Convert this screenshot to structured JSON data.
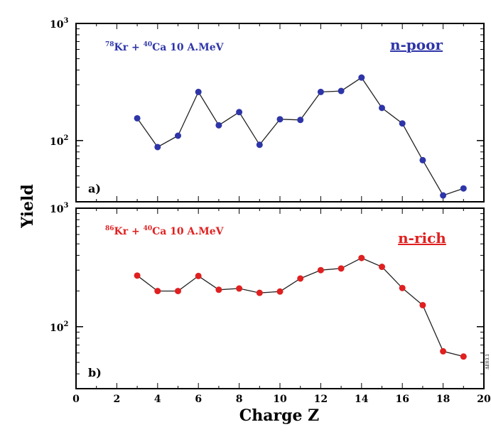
{
  "figure": {
    "ylabel": "Yield",
    "xlabel": "Charge Z",
    "side_mark": "ΔE03.1"
  },
  "chart_data": [
    {
      "type": "line",
      "panel_label": "a)",
      "reaction": {
        "a1": "78",
        "s1": "Kr + ",
        "a2": "40",
        "s2": "Ca  10 A.MeV"
      },
      "tag": "n-poor",
      "color": "#2e35a8",
      "log_y": true,
      "ylim": [
        30,
        1000
      ],
      "yticks": [
        {
          "value": 100,
          "base": "10",
          "exp": "2"
        },
        {
          "value": 1000,
          "base": "10",
          "exp": "3"
        }
      ],
      "xlim": [
        0,
        20
      ],
      "series": [
        {
          "x": [
            3,
            4,
            5,
            6,
            7,
            8,
            9,
            10,
            11,
            12,
            13,
            14,
            15,
            16,
            17,
            18,
            19
          ],
          "y": [
            155,
            88,
            110,
            260,
            135,
            175,
            92,
            152,
            150,
            260,
            265,
            345,
            190,
            140,
            68,
            34,
            39
          ]
        }
      ]
    },
    {
      "type": "line",
      "panel_label": "b)",
      "reaction": {
        "a1": "86",
        "s1": "Kr + ",
        "a2": "40",
        "s2": "Ca  10 A.MeV"
      },
      "tag": "n-rich",
      "color": "#e02020",
      "log_y": true,
      "ylim": [
        30,
        1000
      ],
      "yticks": [
        {
          "value": 100,
          "base": "10",
          "exp": "2"
        },
        {
          "value": 1000,
          "base": "10",
          "exp": "3"
        }
      ],
      "xlim": [
        0,
        20
      ],
      "xticks": [
        0,
        2,
        4,
        6,
        8,
        10,
        12,
        14,
        16,
        18,
        20
      ],
      "series": [
        {
          "x": [
            3,
            4,
            5,
            6,
            7,
            8,
            9,
            10,
            11,
            12,
            13,
            14,
            15,
            16,
            17,
            18,
            19
          ],
          "y": [
            270,
            200,
            200,
            268,
            205,
            210,
            193,
            198,
            255,
            300,
            310,
            380,
            320,
            212,
            152,
            62,
            56
          ]
        }
      ]
    }
  ]
}
